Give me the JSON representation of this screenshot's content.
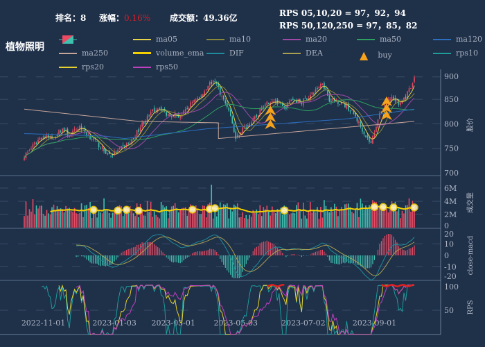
{
  "header": {
    "rank_label": "排名：",
    "rank": "8",
    "change_label": "涨幅：",
    "change": "0.16%",
    "turnover_label": "成交额：",
    "turnover": "49.36亿",
    "rps_short": "RPS 05,10,20 = 97，92，94",
    "rps_long": "RPS 50,120,250 = 97，85，82"
  },
  "title": "植物照明",
  "colors": {
    "bg": "#1f3049",
    "up": "#ec4a63",
    "down": "#3fc1b0",
    "ma05": "#e8d44a",
    "ma10": "#8a8a3a",
    "ma20": "#a04aa8",
    "ma50": "#2ea060",
    "ma120": "#2b6fc0",
    "ma250": "#c6a59a",
    "volume_ema": "#f5d000",
    "dif": "#1e8c9a",
    "dea": "#a8a050",
    "buy": "#f7a21b",
    "rps10": "#1e9c9c",
    "rps20": "#e6d22e",
    "rps50": "#c040c0"
  },
  "legend": [
    {
      "key": "ma05",
      "label": "ma05"
    },
    {
      "key": "ma10",
      "label": "ma10"
    },
    {
      "key": "ma20",
      "label": "ma20"
    },
    {
      "key": "ma50",
      "label": "ma50"
    },
    {
      "key": "ma120",
      "label": "ma120"
    },
    {
      "key": "ma250",
      "label": "ma250"
    },
    {
      "key": "volume_ema",
      "label": "volume_ema"
    },
    {
      "key": "dif",
      "label": "DIF"
    },
    {
      "key": "dea",
      "label": "DEA"
    },
    {
      "key": "buy",
      "label": "buy"
    },
    {
      "key": "rps10",
      "label": "rps10"
    },
    {
      "key": "rps20",
      "label": "rps20"
    },
    {
      "key": "rps50",
      "label": "rps50"
    }
  ],
  "chart_data": {
    "type": "candlestick",
    "days": 226,
    "x_ticks": [
      {
        "label": "2022-11-01",
        "day": 11
      },
      {
        "label": "2023-01-03",
        "day": 52
      },
      {
        "label": "2023-03-01",
        "day": 86
      },
      {
        "label": "2023-05-03",
        "day": 122
      },
      {
        "label": "2023-07-02",
        "day": 161
      },
      {
        "label": "2023-09-01",
        "day": 202
      }
    ],
    "price": {
      "axis_label": "股价",
      "ticks": [
        700,
        750,
        800,
        850,
        900
      ],
      "ylim": [
        700,
        900
      ],
      "close_keypoints": [
        [
          0,
          735
        ],
        [
          4,
          750
        ],
        [
          10,
          775
        ],
        [
          16,
          770
        ],
        [
          22,
          790
        ],
        [
          26,
          775
        ],
        [
          32,
          795
        ],
        [
          36,
          780
        ],
        [
          42,
          760
        ],
        [
          46,
          745
        ],
        [
          50,
          735
        ],
        [
          56,
          750
        ],
        [
          62,
          765
        ],
        [
          68,
          800
        ],
        [
          74,
          825
        ],
        [
          78,
          835
        ],
        [
          82,
          820
        ],
        [
          86,
          820
        ],
        [
          90,
          815
        ],
        [
          94,
          830
        ],
        [
          98,
          850
        ],
        [
          102,
          855
        ],
        [
          106,
          880
        ],
        [
          110,
          890
        ],
        [
          114,
          855
        ],
        [
          118,
          830
        ],
        [
          122,
          770
        ],
        [
          126,
          790
        ],
        [
          130,
          800
        ],
        [
          134,
          815
        ],
        [
          138,
          840
        ],
        [
          144,
          850
        ],
        [
          150,
          830
        ],
        [
          154,
          850
        ],
        [
          160,
          845
        ],
        [
          166,
          860
        ],
        [
          172,
          885
        ],
        [
          176,
          850
        ],
        [
          182,
          845
        ],
        [
          186,
          835
        ],
        [
          190,
          820
        ],
        [
          194,
          795
        ],
        [
          198,
          770
        ],
        [
          200,
          760
        ],
        [
          204,
          810
        ],
        [
          208,
          840
        ],
        [
          212,
          855
        ],
        [
          216,
          840
        ],
        [
          220,
          855
        ],
        [
          224,
          880
        ],
        [
          225,
          895
        ]
      ],
      "ma120_keypoints": [
        [
          0,
          780
        ],
        [
          46,
          775
        ],
        [
          58,
          770
        ],
        [
          106,
          790
        ],
        [
          146,
          800
        ],
        [
          186,
          810
        ],
        [
          225,
          830
        ]
      ],
      "ma250_keypoints": [
        [
          0,
          830
        ],
        [
          66,
          805
        ],
        [
          112,
          802
        ],
        [
          112,
          770
        ],
        [
          225,
          805
        ]
      ]
    },
    "volume": {
      "axis_label": "成交量",
      "ticks": [
        "0",
        "2M",
        "4M",
        "6M"
      ],
      "ylim": [
        0,
        8
      ],
      "unit": "M",
      "spike_day": 108,
      "spike_value": 6.5,
      "ema_level": 2.5
    },
    "macd": {
      "axis_label": "close-macd",
      "ticks": [
        -20,
        -10,
        0,
        10,
        20
      ],
      "ylim": [
        -20,
        20
      ]
    },
    "rps": {
      "axis_label": "RPS",
      "ticks": [
        50,
        100
      ],
      "ylim": [
        0,
        100
      ]
    },
    "buy_days": [
      142,
      143,
      144,
      208,
      209,
      210
    ],
    "volume_markers": [
      40,
      54,
      59,
      66,
      97,
      107,
      110,
      150,
      202,
      207,
      213,
      225
    ]
  }
}
